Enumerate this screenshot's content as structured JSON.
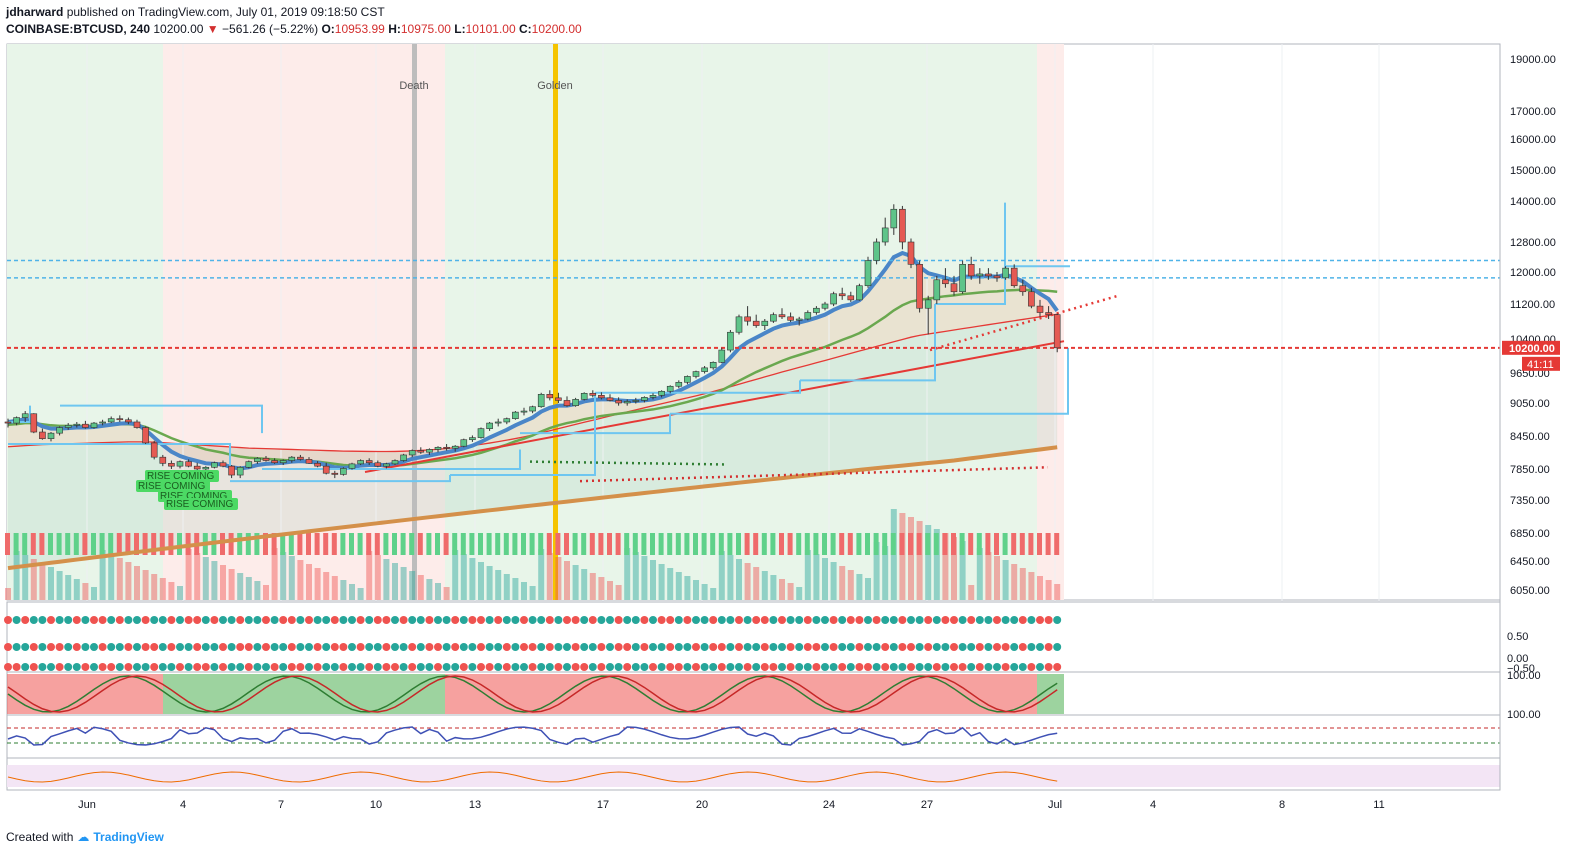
{
  "header": {
    "author": "jdharward",
    "published_text": "published on TradingView.com, July 01, 2019 09:18:50 CST",
    "symbol": "COINBASE:BTCUSD, 240",
    "last": "10200.00",
    "change": "−561.26 (−5.22%)",
    "open_label": "O:",
    "open": "10953.99",
    "high_label": "H:",
    "high": "10975.00",
    "low_label": "L:",
    "low": "10101.00",
    "close_label": "C:",
    "close": "10200.00"
  },
  "footer": {
    "created_with": "Created with",
    "brand": "TradingView"
  },
  "colors": {
    "up": "#26a69a",
    "down": "#ef5350",
    "ema_blue": "#4a86c8",
    "sma_green": "#6aa84f",
    "sma_red": "#e53935",
    "sma_orange": "#d4904a",
    "box_blue": "#6ec6f0",
    "death": "#bdbdbd",
    "golden": "#f5c400",
    "green_bg": "#e8f5e9",
    "red_bg": "#fdecea"
  },
  "chart_data": {
    "type": "candlestick",
    "price_ticks": [
      19000,
      17000,
      16000,
      15000,
      14000,
      12800,
      12000,
      11200,
      10400,
      9650,
      9050,
      8450,
      7850,
      7350,
      6850,
      6450,
      6050
    ],
    "price_tick_labels": [
      "19000.00",
      "17000.00",
      "16000.00",
      "15000.00",
      "14000.00",
      "12800.00",
      "12000.00",
      "11200.00",
      "10400.00",
      "9650.00",
      "9050.00",
      "8450.00",
      "7850.00",
      "7350.00",
      "6850.00",
      "6450.00",
      "6050.00"
    ],
    "last_price_label": "10200.00",
    "countdown_label": "41:11",
    "x_ticks": [
      "Jun",
      "4",
      "7",
      "10",
      "13",
      "17",
      "20",
      "24",
      "27",
      "Jul",
      "4",
      "8",
      "11"
    ],
    "vertical_markers": [
      {
        "label": "Death"
      },
      {
        "label": "Golden"
      }
    ],
    "annotations": [
      "RISE COMING",
      "RISE COMING",
      "RISE COMING",
      "RISE COMING"
    ],
    "horizontal_levels": [
      12300,
      11850,
      10200
    ],
    "candles": [
      [
        8700,
        8760,
        8600,
        8680
      ],
      [
        8680,
        8800,
        8640,
        8780
      ],
      [
        8780,
        8900,
        8700,
        8850
      ],
      [
        8850,
        8860,
        8500,
        8520
      ],
      [
        8520,
        8580,
        8380,
        8400
      ],
      [
        8400,
        8520,
        8350,
        8500
      ],
      [
        8500,
        8620,
        8460,
        8600
      ],
      [
        8600,
        8680,
        8560,
        8640
      ],
      [
        8640,
        8700,
        8600,
        8660
      ],
      [
        8660,
        8720,
        8580,
        8600
      ],
      [
        8600,
        8700,
        8580,
        8680
      ],
      [
        8680,
        8740,
        8640,
        8700
      ],
      [
        8700,
        8800,
        8680,
        8760
      ],
      [
        8760,
        8820,
        8700,
        8740
      ],
      [
        8740,
        8780,
        8660,
        8700
      ],
      [
        8700,
        8740,
        8580,
        8600
      ],
      [
        8600,
        8620,
        8300,
        8320
      ],
      [
        8320,
        8360,
        8020,
        8060
      ],
      [
        8060,
        8100,
        7900,
        7950
      ],
      [
        7950,
        8000,
        7850,
        7900
      ],
      [
        7900,
        8000,
        7860,
        7980
      ],
      [
        7980,
        8020,
        7880,
        7900
      ],
      [
        7900,
        7960,
        7800,
        7850
      ],
      [
        7850,
        7900,
        7780,
        7880
      ],
      [
        7880,
        7980,
        7860,
        7960
      ],
      [
        7960,
        8000,
        7880,
        7900
      ],
      [
        7900,
        7920,
        7700,
        7750
      ],
      [
        7750,
        7900,
        7700,
        7880
      ],
      [
        7880,
        8000,
        7860,
        7980
      ],
      [
        7980,
        8060,
        7940,
        8040
      ],
      [
        8040,
        8080,
        7980,
        8000
      ],
      [
        8000,
        8040,
        7940,
        7960
      ],
      [
        7960,
        8020,
        7920,
        8000
      ],
      [
        8000,
        8080,
        7960,
        8060
      ],
      [
        8060,
        8100,
        8000,
        8020
      ],
      [
        8020,
        8060,
        7940,
        7950
      ],
      [
        7950,
        7990,
        7880,
        7900
      ],
      [
        7900,
        7960,
        7760,
        7780
      ],
      [
        7780,
        7820,
        7700,
        7760
      ],
      [
        7760,
        7880,
        7740,
        7860
      ],
      [
        7860,
        7960,
        7840,
        7940
      ],
      [
        7940,
        8020,
        7920,
        8000
      ],
      [
        8000,
        8040,
        7920,
        7960
      ],
      [
        7960,
        8000,
        7880,
        7900
      ],
      [
        7900,
        7960,
        7860,
        7940
      ],
      [
        7940,
        8020,
        7920,
        8000
      ],
      [
        8000,
        8120,
        7980,
        8100
      ],
      [
        8100,
        8200,
        8060,
        8180
      ],
      [
        8180,
        8240,
        8120,
        8150
      ],
      [
        8150,
        8220,
        8100,
        8200
      ],
      [
        8200,
        8260,
        8150,
        8240
      ],
      [
        8240,
        8300,
        8180,
        8220
      ],
      [
        8220,
        8280,
        8160,
        8260
      ],
      [
        8260,
        8400,
        8240,
        8380
      ],
      [
        8380,
        8460,
        8340,
        8420
      ],
      [
        8420,
        8600,
        8400,
        8580
      ],
      [
        8580,
        8700,
        8540,
        8680
      ],
      [
        8680,
        8760,
        8620,
        8700
      ],
      [
        8700,
        8780,
        8660,
        8760
      ],
      [
        8760,
        8900,
        8740,
        8880
      ],
      [
        8880,
        8960,
        8820,
        8900
      ],
      [
        8900,
        9000,
        8860,
        8980
      ],
      [
        8980,
        9250,
        8960,
        9220
      ],
      [
        9220,
        9300,
        9100,
        9150
      ],
      [
        9150,
        9250,
        9050,
        9100
      ],
      [
        9100,
        9180,
        8980,
        9000
      ],
      [
        9000,
        9150,
        8980,
        9120
      ],
      [
        9120,
        9260,
        9100,
        9240
      ],
      [
        9240,
        9300,
        9160,
        9200
      ],
      [
        9200,
        9260,
        9120,
        9150
      ],
      [
        9150,
        9220,
        9080,
        9100
      ],
      [
        9100,
        9160,
        9000,
        9050
      ],
      [
        9050,
        9120,
        9000,
        9080
      ],
      [
        9080,
        9150,
        9040,
        9100
      ],
      [
        9100,
        9180,
        9060,
        9160
      ],
      [
        9160,
        9240,
        9120,
        9200
      ],
      [
        9200,
        9300,
        9160,
        9280
      ],
      [
        9280,
        9400,
        9240,
        9380
      ],
      [
        9380,
        9500,
        9340,
        9460
      ],
      [
        9460,
        9600,
        9420,
        9580
      ],
      [
        9580,
        9700,
        9540,
        9680
      ],
      [
        9680,
        9800,
        9640,
        9760
      ],
      [
        9760,
        9900,
        9720,
        9880
      ],
      [
        9880,
        10200,
        9860,
        10150
      ],
      [
        10150,
        10600,
        10100,
        10550
      ],
      [
        10550,
        10950,
        10500,
        10900
      ],
      [
        10900,
        11150,
        10700,
        10800
      ],
      [
        10800,
        10950,
        10650,
        10700
      ],
      [
        10700,
        10850,
        10600,
        10800
      ],
      [
        10800,
        11000,
        10760,
        10950
      ],
      [
        10950,
        11100,
        10850,
        10900
      ],
      [
        10900,
        11000,
        10780,
        10820
      ],
      [
        10820,
        10900,
        10700,
        10850
      ],
      [
        10850,
        11050,
        10820,
        11000
      ],
      [
        11000,
        11150,
        10950,
        11100
      ],
      [
        11100,
        11250,
        11050,
        11200
      ],
      [
        11200,
        11500,
        11150,
        11450
      ],
      [
        11450,
        11600,
        11300,
        11400
      ],
      [
        11400,
        11500,
        11250,
        11300
      ],
      [
        11300,
        11700,
        11280,
        11650
      ],
      [
        11650,
        12400,
        11600,
        12300
      ],
      [
        12300,
        12900,
        12200,
        12800
      ],
      [
        12800,
        13500,
        12700,
        13200
      ],
      [
        13200,
        13900,
        13000,
        13750
      ],
      [
        13750,
        13850,
        12600,
        12800
      ],
      [
        12800,
        12900,
        12100,
        12200
      ],
      [
        12200,
        12300,
        11000,
        11100
      ],
      [
        11100,
        11400,
        10500,
        11300
      ],
      [
        11300,
        11900,
        11200,
        11800
      ],
      [
        11800,
        12100,
        11600,
        11700
      ],
      [
        11700,
        11900,
        11400,
        11500
      ],
      [
        11500,
        12300,
        11450,
        12200
      ],
      [
        12200,
        12400,
        11800,
        11900
      ],
      [
        11900,
        12100,
        11700,
        11950
      ],
      [
        11950,
        12100,
        11800,
        11900
      ],
      [
        11900,
        12000,
        11750,
        11850
      ],
      [
        11850,
        12150,
        11800,
        12100
      ],
      [
        12100,
        12200,
        11600,
        11650
      ],
      [
        11650,
        11800,
        11400,
        11500
      ],
      [
        11500,
        11600,
        11100,
        11150
      ],
      [
        11150,
        11300,
        10900,
        11000
      ],
      [
        11000,
        11150,
        10850,
        10950
      ],
      [
        10950,
        10975,
        10101,
        10200
      ]
    ],
    "ema_fast": [
      8700,
      8720,
      8750,
      8700,
      8620,
      8580,
      8580,
      8590,
      8600,
      8600,
      8610,
      8630,
      8650,
      8670,
      8680,
      8660,
      8560,
      8420,
      8280,
      8160,
      8080,
      8030,
      7990,
      7950,
      7940,
      7930,
      7880,
      7860,
      7880,
      7920,
      7940,
      7950,
      7960,
      7980,
      7990,
      7980,
      7960,
      7920,
      7880,
      7870,
      7880,
      7910,
      7920,
      7920,
      7920,
      7940,
      7980,
      8030,
      8060,
      8090,
      8120,
      8150,
      8180,
      8220,
      8270,
      8340,
      8420,
      8490,
      8560,
      8640,
      8710,
      8780,
      8890,
      8960,
      9000,
      9000,
      9030,
      9080,
      9110,
      9120,
      9120,
      9100,
      9090,
      9090,
      9100,
      9120,
      9160,
      9220,
      9290,
      9370,
      9460,
      9550,
      9650,
      9790,
      9980,
      10190,
      10330,
      10430,
      10530,
      10630,
      10700,
      10740,
      10770,
      10820,
      10880,
      10950,
      11060,
      11150,
      11190,
      11290,
      11510,
      11780,
      12070,
      12390,
      12500,
      12420,
      12130,
      11970,
      11910,
      11850,
      11780,
      11880,
      11880,
      11890,
      11890,
      11880,
      11930,
      11860,
      11760,
      11600,
      11450,
      11320,
      11040
    ],
    "sma_mid": [
      8650,
      8660,
      8680,
      8680,
      8660,
      8640,
      8630,
      8630,
      8630,
      8630,
      8630,
      8640,
      8650,
      8660,
      8660,
      8650,
      8610,
      8550,
      8480,
      8410,
      8350,
      8300,
      8250,
      8200,
      8170,
      8140,
      8100,
      8070,
      8050,
      8040,
      8030,
      8020,
      8010,
      8000,
      8000,
      7990,
      7980,
      7960,
      7940,
      7920,
      7910,
      7910,
      7910,
      7910,
      7910,
      7910,
      7920,
      7940,
      7960,
      7980,
      8000,
      8020,
      8040,
      8070,
      8100,
      8140,
      8190,
      8240,
      8290,
      8350,
      8400,
      8460,
      8530,
      8590,
      8640,
      8680,
      8710,
      8750,
      8780,
      8810,
      8830,
      8850,
      8870,
      8890,
      8910,
      8930,
      8960,
      8990,
      9030,
      9070,
      9120,
      9170,
      9230,
      9300,
      9390,
      9490,
      9580,
      9670,
      9750,
      9830,
      9910,
      9980,
      10040,
      10100,
      10160,
      10220,
      10300,
      10380,
      10450,
      10530,
      10640,
      10770,
      10900,
      11050,
      11170,
      11260,
      11300,
      11330,
      11360,
      11390,
      11410,
      11440,
      11460,
      11480,
      11500,
      11510,
      11530,
      11540,
      11550,
      11540,
      11530,
      11520,
      11500
    ],
    "sma_long": [
      8250,
      8260,
      8270,
      8280,
      8290,
      8295,
      8300,
      8305,
      8310,
      8315,
      8320,
      8325,
      8330,
      8335,
      8340,
      8340,
      8340,
      8335,
      8325,
      8315,
      8305,
      8295,
      8285,
      8275,
      8265,
      8255,
      8245,
      8235,
      8225,
      8220,
      8215,
      8210,
      8205,
      8200,
      8195,
      8190,
      8185,
      8180,
      8175,
      8170,
      8168,
      8166,
      8164,
      8162,
      8162,
      8164,
      8168,
      8174,
      8182,
      8192,
      8204,
      8218,
      8234,
      8252,
      8272,
      8294,
      8318,
      8344,
      8372,
      8402,
      8434,
      8468,
      8504,
      8542,
      8580,
      8618,
      8656,
      8694,
      8732,
      8770,
      8808,
      8846,
      8884,
      8922,
      8960,
      8998,
      9036,
      9074,
      9112,
      9150,
      9190,
      9232,
      9276,
      9322,
      9370,
      9420,
      9470,
      9520,
      9570,
      9620,
      9670,
      9720,
      9770,
      9820,
      9870,
      9920,
      9972,
      10024,
      10076,
      10128,
      10180,
      10232,
      10284,
      10336,
      10388,
      10440,
      10480,
      10510,
      10540,
      10570,
      10600,
      10630,
      10660,
      10690,
      10720,
      10750,
      10780,
      10810,
      10840,
      10870,
      10900,
      10930,
      10960
    ],
    "sma_orange": [
      6350,
      6365,
      6380,
      6395,
      6410,
      6425,
      6440,
      6455,
      6470,
      6485,
      6500,
      6515,
      6530,
      6545,
      6560,
      6575,
      6590,
      6605,
      6620,
      6635,
      6650,
      6665,
      6680,
      6695,
      6710,
      6725,
      6740,
      6755,
      6770,
      6785,
      6800,
      6815,
      6830,
      6845,
      6860,
      6875,
      6890,
      6905,
      6920,
      6935,
      6950,
      6965,
      6980,
      6995,
      7010,
      7025,
      7040,
      7055,
      7070,
      7085,
      7100,
      7115,
      7130,
      7145,
      7160,
      7175,
      7190,
      7205,
      7220,
      7235,
      7250,
      7265,
      7280,
      7295,
      7310,
      7325,
      7340,
      7355,
      7370,
      7385,
      7400,
      7415,
      7430,
      7445,
      7460,
      7475,
      7490,
      7505,
      7520,
      7535,
      7550,
      7565,
      7580,
      7595,
      7610,
      7625,
      7640,
      7655,
      7670,
      7685,
      7700,
      7715,
      7730,
      7745,
      7760,
      7775,
      7790,
      7805,
      7820,
      7835,
      7850,
      7865,
      7880,
      7895,
      7910,
      7925,
      7940,
      7955,
      7970,
      7985,
      8000,
      8020,
      8040,
      8060,
      8080,
      8100,
      8120,
      8140,
      8160,
      8180,
      8200,
      8220,
      8240
    ]
  }
}
